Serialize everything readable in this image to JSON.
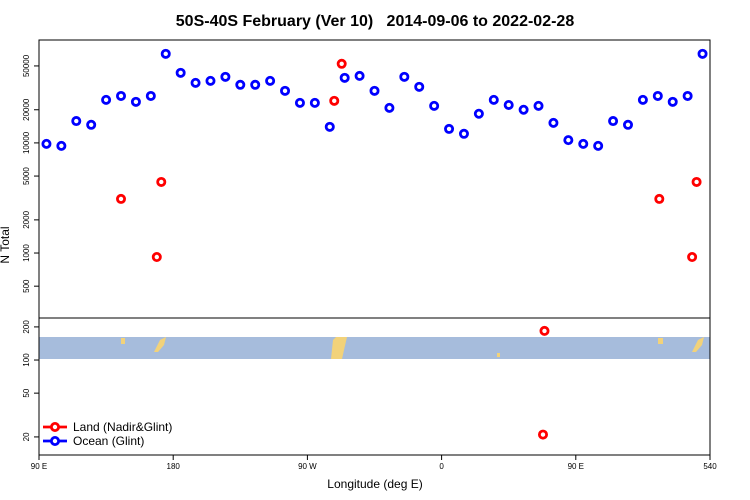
{
  "chart_data": [
    {
      "type": "scatter",
      "title": "50S-40S February (Ver 10)   2014-09-06 to 2022-02-28",
      "ylabel": "N Total",
      "log_y": true,
      "xlim": [
        90,
        540
      ],
      "ylim": [
        257,
        86000
      ],
      "yticks": [
        500,
        1000,
        2000,
        5000,
        10000,
        20000,
        50000
      ],
      "legend": "lower left",
      "series": [
        {
          "name": "Land (Nadir&Glint)",
          "color": "#ff0000",
          "x": [
            145,
            169,
            172,
            288,
            293,
            506,
            528,
            531
          ],
          "values": [
            3100,
            920,
            4420,
            24100,
            52300,
            3100,
            920,
            4420
          ]
        },
        {
          "name": "Ocean (Glint)",
          "color": "#0000ff",
          "x": [
            95,
            105,
            115,
            125,
            135,
            145,
            155,
            165,
            175,
            185,
            195,
            205,
            215,
            225,
            235,
            245,
            255,
            265,
            275,
            285,
            295,
            305,
            315,
            325,
            335,
            345,
            355,
            365,
            375,
            385,
            395,
            405,
            415,
            425,
            435,
            445,
            455,
            465,
            475,
            485,
            495,
            505,
            515,
            525,
            535
          ],
          "values": [
            9800,
            9400,
            15800,
            14600,
            24600,
            26700,
            23600,
            26700,
            64400,
            43300,
            35100,
            36600,
            39800,
            33700,
            33700,
            36600,
            29700,
            23100,
            23100,
            14000,
            39000,
            40600,
            29700,
            20800,
            39800,
            32300,
            21700,
            13400,
            12100,
            18400,
            24600,
            22100,
            20000,
            21700,
            15200,
            10600,
            9800,
            9400,
            15800,
            14600,
            24600,
            26700,
            23600,
            26700,
            64400
          ]
        }
      ]
    },
    {
      "type": "scatter",
      "xlabel": "Longitude (deg E)",
      "log_y": true,
      "xlim": [
        90,
        540
      ],
      "xticks": [
        {
          "value": 90,
          "label": "90 E"
        },
        180,
        {
          "value": 270,
          "label": "90 W"
        },
        {
          "value": 360,
          "label": "0"
        },
        {
          "value": 450,
          "label": "90 E"
        },
        540
      ],
      "ylim": [
        13.7,
        241
      ],
      "yticks": [
        20,
        50,
        100,
        200
      ],
      "series": [
        {
          "color": "#ff0000",
          "x": [
            429,
            428
          ],
          "values": [
            184,
            21
          ]
        }
      ]
    }
  ]
}
